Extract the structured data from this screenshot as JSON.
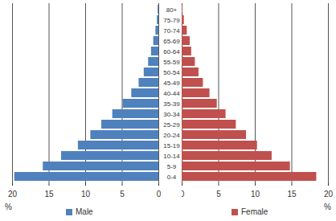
{
  "chart_data": {
    "type": "bar",
    "orientation": "horizontal",
    "categories": [
      "0-4",
      "5-9",
      "10-14",
      "15-19",
      "20-24",
      "25-29",
      "30-34",
      "35-39",
      "40-44",
      "45-49",
      "50-54",
      "55-59",
      "60-64",
      "65-69",
      "70-74",
      "75-79",
      "80+"
    ],
    "series": [
      {
        "name": "Male",
        "color": "#4f81bd",
        "values": [
          19.7,
          15.8,
          13.3,
          11.0,
          9.3,
          7.8,
          6.3,
          4.9,
          3.7,
          2.7,
          2.0,
          1.4,
          1.0,
          0.7,
          0.4,
          0.2,
          0.1
        ]
      },
      {
        "name": "Female",
        "color": "#c0504d",
        "values": [
          18.4,
          14.8,
          12.3,
          10.3,
          8.8,
          7.4,
          6.0,
          4.8,
          3.8,
          2.9,
          2.3,
          1.8,
          1.3,
          1.1,
          0.7,
          0.3,
          0.1
        ]
      }
    ],
    "xlim": [
      0,
      20
    ],
    "xticks": [
      0,
      5,
      10,
      15,
      20
    ],
    "xlabel": "%",
    "grid": true,
    "legend": "bottom"
  }
}
